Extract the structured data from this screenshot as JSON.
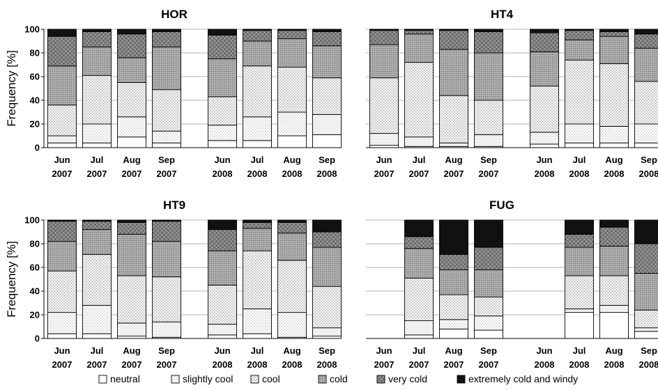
{
  "chart_data": {
    "type": "bar",
    "stacked": true,
    "ylabel": "Frequency [%]",
    "ylim": [
      0,
      100
    ],
    "yticks": [
      0,
      20,
      40,
      60,
      80,
      100
    ],
    "grid": true,
    "legend_position": "bottom",
    "legend": [
      "neutral",
      "slightly cool",
      "cool",
      "cold",
      "very cold",
      "extremely cold and windy"
    ],
    "series_fills": [
      "neutral",
      "slightly_cool",
      "cool",
      "cold",
      "very_cold",
      "extreme"
    ],
    "colors": {
      "neutral": "#ffffff",
      "slightly_cool": "#f6f6f6",
      "cool": "#e3e3e3",
      "cold": "#9a9a9a",
      "very_cold": "#7a7a7a",
      "extreme": "#111111",
      "grid": "#9a9a9a"
    },
    "panels": [
      {
        "title": "HOR",
        "categories": [
          {
            "month": "Jun",
            "year": "2007",
            "values": [
              4,
              6,
              26,
              33,
              25,
              6
            ]
          },
          {
            "month": "Jul",
            "year": "2007",
            "values": [
              4,
              16,
              41,
              24,
              13,
              2
            ]
          },
          {
            "month": "Aug",
            "year": "2007",
            "values": [
              9,
              17,
              29,
              21,
              20,
              4
            ]
          },
          {
            "month": "Sep",
            "year": "2007",
            "values": [
              4,
              10,
              35,
              36,
              13,
              2
            ]
          },
          {
            "month": "Jun",
            "year": "2008",
            "values": [
              6,
              13,
              24,
              32,
              20,
              5
            ]
          },
          {
            "month": "Jul",
            "year": "2008",
            "values": [
              6,
              20,
              43,
              21,
              9,
              1
            ]
          },
          {
            "month": "Aug",
            "year": "2008",
            "values": [
              10,
              20,
              38,
              24,
              7,
              1
            ]
          },
          {
            "month": "Sep",
            "year": "2008",
            "values": [
              11,
              17,
              31,
              27,
              12,
              2
            ]
          }
        ]
      },
      {
        "title": "HT4",
        "categories": [
          {
            "month": "Jun",
            "year": "2007",
            "values": [
              2,
              10,
              47,
              28,
              12,
              1
            ]
          },
          {
            "month": "Jul",
            "year": "2007",
            "values": [
              1,
              8,
              63,
              24,
              3,
              1
            ]
          },
          {
            "month": "Aug",
            "year": "2007",
            "values": [
              1,
              3,
              40,
              39,
              16,
              1
            ]
          },
          {
            "month": "Sep",
            "year": "2007",
            "values": [
              1,
              10,
              29,
              40,
              18,
              2
            ]
          },
          {
            "month": "Jun",
            "year": "2008",
            "values": [
              3,
              10,
              39,
              29,
              16,
              3
            ]
          },
          {
            "month": "Jul",
            "year": "2008",
            "values": [
              4,
              16,
              54,
              17,
              8,
              1
            ]
          },
          {
            "month": "Aug",
            "year": "2008",
            "values": [
              4,
              14,
              53,
              23,
              4,
              2
            ]
          },
          {
            "month": "Sep",
            "year": "2008",
            "values": [
              4,
              16,
              36,
              28,
              12,
              4
            ]
          }
        ]
      },
      {
        "title": "HT9",
        "categories": [
          {
            "month": "Jun",
            "year": "2007",
            "values": [
              4,
              18,
              35,
              25,
              17,
              1
            ]
          },
          {
            "month": "Jul",
            "year": "2007",
            "values": [
              4,
              24,
              43,
              21,
              7,
              1
            ]
          },
          {
            "month": "Aug",
            "year": "2007",
            "values": [
              2,
              11,
              40,
              35,
              10,
              2
            ]
          },
          {
            "month": "Sep",
            "year": "2007",
            "values": [
              1,
              13,
              38,
              30,
              17,
              1
            ]
          },
          {
            "month": "Jun",
            "year": "2008",
            "values": [
              3,
              9,
              33,
              29,
              18,
              8
            ]
          },
          {
            "month": "Jul",
            "year": "2008",
            "values": [
              4,
              21,
              49,
              19,
              5,
              2
            ]
          },
          {
            "month": "Aug",
            "year": "2008",
            "values": [
              1,
              21,
              44,
              23,
              9,
              2
            ]
          },
          {
            "month": "Sep",
            "year": "2008",
            "values": [
              2,
              7,
              35,
              33,
              13,
              10
            ]
          }
        ]
      },
      {
        "title": "FUG",
        "categories": [
          {
            "month": "Jun",
            "year": "2007",
            "values": [
              0,
              0,
              0,
              0,
              0,
              0
            ]
          },
          {
            "month": "Jul",
            "year": "2007",
            "values": [
              3,
              12,
              36,
              25,
              10,
              14
            ]
          },
          {
            "month": "Aug",
            "year": "2007",
            "values": [
              8,
              8,
              21,
              21,
              13,
              29
            ]
          },
          {
            "month": "Sep",
            "year": "2007",
            "values": [
              7,
              12,
              16,
              23,
              19,
              23
            ]
          },
          {
            "month": "Jun",
            "year": "2008",
            "values": [
              0,
              0,
              0,
              0,
              0,
              0
            ]
          },
          {
            "month": "Jul",
            "year": "2008",
            "values": [
              22,
              3,
              28,
              24,
              11,
              12
            ]
          },
          {
            "month": "Aug",
            "year": "2008",
            "values": [
              22,
              6,
              25,
              25,
              16,
              6
            ]
          },
          {
            "month": "Sep",
            "year": "2008",
            "values": [
              6,
              3,
              15,
              31,
              25,
              20
            ]
          }
        ]
      }
    ]
  }
}
